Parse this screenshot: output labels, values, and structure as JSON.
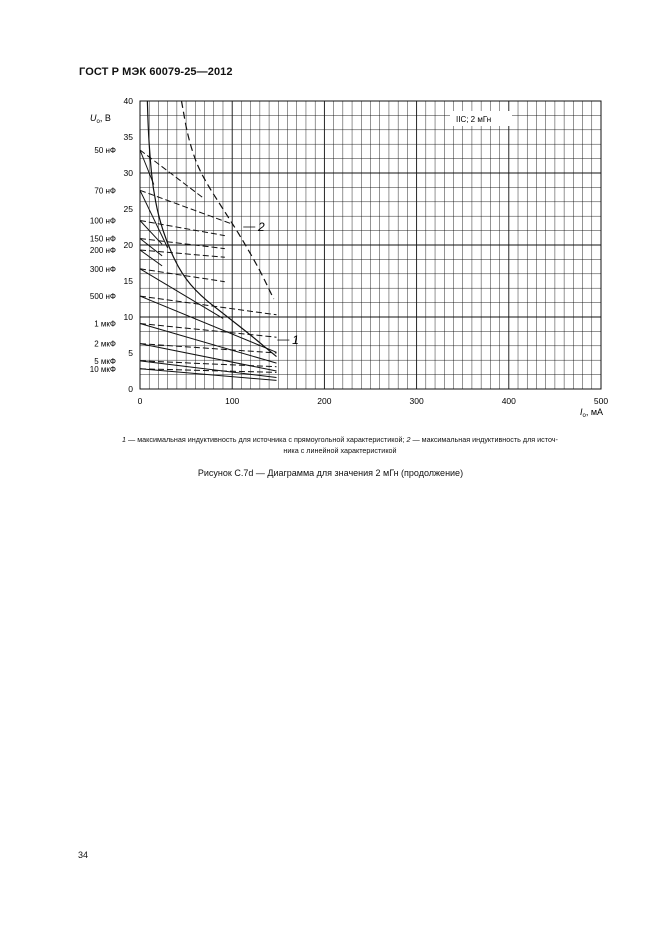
{
  "header": {
    "title": "ГОСТ Р МЭК 60079-25—2012"
  },
  "chart_data": {
    "type": "line",
    "title": "",
    "legend_box": "IIC; 2 мГн",
    "ylabel": "U",
    "ylabel_sub": "o",
    "ylabel_unit": ", В",
    "xlabel": "I",
    "xlabel_sub": "o",
    "xlabel_unit": ", мА",
    "xlim": [
      0,
      500
    ],
    "ylim": [
      0,
      40
    ],
    "x_ticks": [
      "0",
      "100",
      "200",
      "300",
      "400",
      "500"
    ],
    "y_ticks": [
      "0",
      "5",
      "10",
      "15",
      "20",
      "25",
      "30",
      "35",
      "40"
    ],
    "capacitance_labels": [
      {
        "text": "50 нФ",
        "y": 33.2
      },
      {
        "text": "70 нФ",
        "y": 27.6
      },
      {
        "text": "100 нФ",
        "y": 23.4
      },
      {
        "text": "150 нФ",
        "y": 20.9
      },
      {
        "text": "200 нФ",
        "y": 19.3
      },
      {
        "text": "300 нФ",
        "y": 16.7
      },
      {
        "text": "500 нФ",
        "y": 12.9
      },
      {
        "text": "1 мкФ",
        "y": 9.1
      },
      {
        "text": "2 мкФ",
        "y": 6.3
      },
      {
        "text": "5 мкФ",
        "y": 3.9
      },
      {
        "text": "10 мкФ",
        "y": 2.8
      }
    ],
    "curve_labels": [
      {
        "text": "1",
        "x": 165,
        "y": 6.8
      },
      {
        "text": "2",
        "x": 128,
        "y": 22.5
      }
    ],
    "series": [
      {
        "name": "1",
        "style": "solid",
        "points": [
          [
            8,
            40
          ],
          [
            9,
            36
          ],
          [
            11,
            32
          ],
          [
            14,
            28
          ],
          [
            20,
            24
          ],
          [
            30,
            20
          ],
          [
            45,
            16
          ],
          [
            65,
            13
          ],
          [
            95,
            10
          ],
          [
            120,
            7.5
          ],
          [
            148,
            4.5
          ]
        ]
      },
      {
        "name": "2",
        "style": "dashed",
        "points": [
          [
            45,
            40
          ],
          [
            52,
            35
          ],
          [
            62,
            31
          ],
          [
            75,
            28
          ],
          [
            90,
            25
          ],
          [
            110,
            21
          ],
          [
            130,
            16.5
          ],
          [
            145,
            12.5
          ]
        ]
      }
    ],
    "capacitance_solid": [
      [
        [
          0,
          33.2
        ],
        [
          15,
          28.4
        ]
      ],
      [
        [
          0,
          27.6
        ],
        [
          30,
          19.6
        ]
      ],
      [
        [
          0,
          23.4
        ],
        [
          24,
          20.1
        ]
      ],
      [
        [
          0,
          20.9
        ],
        [
          24,
          18.5
        ]
      ],
      [
        [
          0,
          19.3
        ],
        [
          24,
          17.1
        ]
      ],
      [
        [
          0,
          16.7
        ],
        [
          90,
          9.8
        ]
      ],
      [
        [
          0,
          12.9
        ],
        [
          148,
          5.1
        ]
      ],
      [
        [
          0,
          9.1
        ],
        [
          148,
          3.6
        ]
      ],
      [
        [
          0,
          6.3
        ],
        [
          148,
          2.5
        ]
      ],
      [
        [
          0,
          3.9
        ],
        [
          148,
          1.6
        ]
      ],
      [
        [
          0,
          2.8
        ],
        [
          148,
          1.2
        ]
      ]
    ],
    "capacitance_dashed": [
      [
        [
          0,
          33.2
        ],
        [
          68,
          26.6
        ]
      ],
      [
        [
          0,
          27.6
        ],
        [
          100,
          22.9
        ]
      ],
      [
        [
          0,
          23.4
        ],
        [
          92,
          21.3
        ]
      ],
      [
        [
          0,
          20.9
        ],
        [
          92,
          19.5
        ]
      ],
      [
        [
          0,
          19.3
        ],
        [
          92,
          18.3
        ]
      ],
      [
        [
          0,
          16.7
        ],
        [
          92,
          14.9
        ]
      ],
      [
        [
          0,
          12.9
        ],
        [
          148,
          10.3
        ]
      ],
      [
        [
          0,
          9.1
        ],
        [
          148,
          7.2
        ]
      ],
      [
        [
          0,
          6.3
        ],
        [
          148,
          5.0
        ]
      ],
      [
        [
          0,
          3.9
        ],
        [
          148,
          3.1
        ]
      ],
      [
        [
          0,
          2.8
        ],
        [
          148,
          2.3
        ]
      ]
    ]
  },
  "caption": {
    "num1": "1",
    "text1": " — максимальная индуктивность для источника с прямоугольной характеристикой; ",
    "num2": "2",
    "text2": " — максимальная индуктивность для источ-",
    "line2": "ника с линейной характеристикой"
  },
  "figure_title": "Рисунок С.7d — Диаграмма для значения 2 мГн (продолжение)",
  "page_number": "34"
}
